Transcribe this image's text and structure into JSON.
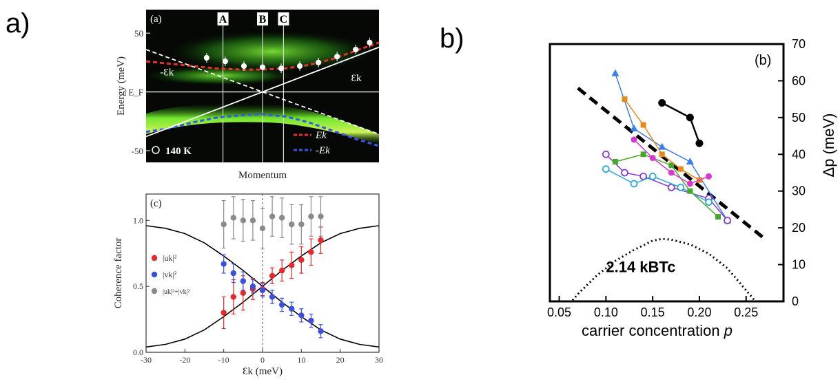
{
  "panel_labels": {
    "a": "a)",
    "b": "b)"
  },
  "chart_data": [
    {
      "type": "heatmap",
      "panel_tag": "(a)",
      "ylabel": "Energy (meV)",
      "xlabel": "Momentum",
      "ylim": [
        -60,
        70
      ],
      "yticks": [
        {
          "v": 50,
          "label": "50"
        },
        {
          "v": 0,
          "label": "E_F"
        },
        {
          "v": -50,
          "label": "-50"
        }
      ],
      "markers": [
        "A",
        "B",
        "C"
      ],
      "curve_labels": [
        "-Ɛk",
        "Ɛk"
      ],
      "legend": [
        {
          "symbol": "open-circle",
          "label": "140 K",
          "color": "#ffffff"
        },
        {
          "symbol": "dashed",
          "label": "Ek",
          "color": "#e8312a"
        },
        {
          "symbol": "dashed",
          "label": "-Ek",
          "color": "#3a56e8"
        }
      ],
      "series": [
        {
          "name": "Ek",
          "x": [
            0.0,
            0.1,
            0.2,
            0.3,
            0.4,
            0.5,
            0.6,
            0.7,
            0.8,
            0.9,
            1.0
          ],
          "y": [
            26,
            24,
            22,
            20,
            19,
            19,
            20,
            23,
            28,
            35,
            42
          ],
          "color": "#e8312a"
        },
        {
          "name": "-Ek",
          "x": [
            0.0,
            0.1,
            0.2,
            0.3,
            0.4,
            0.5,
            0.6,
            0.7,
            0.8,
            0.9,
            1.0
          ],
          "y": [
            -34,
            -31,
            -26,
            -22,
            -20,
            -19,
            -21,
            -26,
            -33,
            -40,
            -46
          ],
          "color": "#3a56e8"
        },
        {
          "name": "Ɛk",
          "x": [
            0.0,
            1.0
          ],
          "y": [
            -38,
            38
          ],
          "color": "#ffffff"
        },
        {
          "name": "-Ɛk",
          "x": [
            0.0,
            1.0
          ],
          "y": [
            36,
            -36
          ],
          "color": "#ffffff"
        }
      ],
      "data_points": {
        "x": [
          0.26,
          0.34,
          0.42,
          0.5,
          0.58,
          0.66,
          0.74,
          0.82,
          0.9,
          0.96
        ],
        "y": [
          29,
          26,
          22,
          21,
          20,
          22,
          25,
          30,
          36,
          42
        ]
      }
    },
    {
      "type": "scatter",
      "panel_tag": "(c)",
      "xlabel": "Ɛk (meV)",
      "ylabel": "Coherence factor",
      "xlim": [
        -30,
        30
      ],
      "ylim": [
        0,
        1.2
      ],
      "xticks": [
        -30,
        -20,
        -10,
        0,
        10,
        20,
        30
      ],
      "yticks": [
        {
          "v": 0,
          "label": "0.0"
        },
        {
          "v": 0.5,
          "label": "0.5"
        },
        {
          "v": 1,
          "label": "1.0"
        }
      ],
      "legend": [
        {
          "label": "|uk|²",
          "color": "#e8282a"
        },
        {
          "label": "|vk|²",
          "color": "#3c50e0"
        },
        {
          "label": "|uk|²+|vk|²",
          "color": "#8a8a8a"
        }
      ],
      "series": [
        {
          "name": "|uk|²",
          "color": "#e8282a",
          "x": [
            -10,
            -7.5,
            -5,
            -2.5,
            0,
            2.5,
            5,
            7.5,
            10,
            12.5,
            15
          ],
          "y": [
            0.3,
            0.42,
            0.45,
            0.48,
            0.48,
            0.58,
            0.62,
            0.66,
            0.7,
            0.76,
            0.85
          ],
          "err": [
            0.12,
            0.13,
            0.13,
            0.08,
            0.05,
            0.06,
            0.08,
            0.1,
            0.1,
            0.1,
            0.1
          ]
        },
        {
          "name": "|vk|²",
          "color": "#3c50e0",
          "x": [
            -10,
            -7.5,
            -5,
            -2.5,
            0,
            2.5,
            5,
            7.5,
            10,
            12.5,
            15
          ],
          "y": [
            0.67,
            0.6,
            0.54,
            0.5,
            0.47,
            0.42,
            0.36,
            0.33,
            0.28,
            0.24,
            0.16
          ],
          "err": [
            0.07,
            0.07,
            0.07,
            0.05,
            0.05,
            0.05,
            0.05,
            0.05,
            0.05,
            0.05,
            0.05
          ]
        },
        {
          "name": "|uk|²+|vk|²",
          "color": "#8a8a8a",
          "x": [
            -10,
            -7.5,
            -5,
            -2.5,
            0,
            2.5,
            5,
            7.5,
            10,
            12.5,
            15
          ],
          "y": [
            0.97,
            1.02,
            1.0,
            1.0,
            0.94,
            1.03,
            1.02,
            0.97,
            0.97,
            1.03,
            1.03
          ],
          "err": [
            0.18,
            0.16,
            0.16,
            0.15,
            0.15,
            0.15,
            0.15,
            0.15,
            0.15,
            0.15,
            0.15
          ]
        }
      ],
      "theory_curves": [
        {
          "name": "u",
          "x": [
            -30,
            -25,
            -20,
            -15,
            -10,
            -5,
            0,
            5,
            10,
            15,
            20,
            25,
            30
          ],
          "y": [
            0.04,
            0.06,
            0.1,
            0.17,
            0.27,
            0.38,
            0.5,
            0.62,
            0.73,
            0.83,
            0.9,
            0.94,
            0.96
          ]
        },
        {
          "name": "v",
          "x": [
            -30,
            -25,
            -20,
            -15,
            -10,
            -5,
            0,
            5,
            10,
            15,
            20,
            25,
            30
          ],
          "y": [
            0.96,
            0.94,
            0.9,
            0.83,
            0.73,
            0.62,
            0.5,
            0.38,
            0.27,
            0.17,
            0.1,
            0.06,
            0.04
          ]
        }
      ]
    },
    {
      "type": "line",
      "panel_tag": "(b)",
      "xlabel_text": "carrier concentration ",
      "xlabel_var": "p",
      "ylabel": "Δp (meV)",
      "xlim": [
        0.04,
        0.29
      ],
      "ylim": [
        0,
        70
      ],
      "xticks": [
        0.05,
        0.1,
        0.15,
        0.2,
        0.25
      ],
      "xtick_labels": [
        "0.05",
        "0.10",
        "0.15",
        "0.20",
        "0.25"
      ],
      "yticks": [
        0,
        10,
        20,
        30,
        40,
        50,
        60,
        70
      ],
      "annotation": "2.14 kBTc",
      "series": [
        {
          "name": "black",
          "color": "#000000",
          "marker": "filled-circle",
          "x": [
            0.16,
            0.19,
            0.2
          ],
          "y": [
            54,
            50,
            43
          ]
        },
        {
          "name": "blue-tri",
          "color": "#3a7ff0",
          "marker": "filled-triangle",
          "x": [
            0.11,
            0.13,
            0.16,
            0.19,
            0.23
          ],
          "y": [
            62,
            47,
            42,
            38,
            22
          ]
        },
        {
          "name": "purple-open",
          "color": "#8a3ad8",
          "marker": "open-circle",
          "x": [
            0.1,
            0.12,
            0.14,
            0.17,
            0.21,
            0.23
          ],
          "y": [
            40,
            35,
            34,
            31,
            28,
            22
          ]
        },
        {
          "name": "cyan-open",
          "color": "#2aa7d8",
          "marker": "open-circle",
          "x": [
            0.1,
            0.13,
            0.15,
            0.18,
            0.21
          ],
          "y": [
            36,
            32,
            34,
            31,
            27
          ]
        },
        {
          "name": "green-sq",
          "color": "#46a82a",
          "marker": "filled-square",
          "x": [
            0.11,
            0.14,
            0.17,
            0.19,
            0.22
          ],
          "y": [
            38,
            40,
            37,
            30,
            23
          ]
        },
        {
          "name": "orange-sq",
          "color": "#e88a1a",
          "marker": "filled-square",
          "x": [
            0.12,
            0.14,
            0.16,
            0.18,
            0.2
          ],
          "y": [
            55,
            48,
            40,
            36,
            33
          ]
        },
        {
          "name": "magenta-circ",
          "color": "#d83ad0",
          "marker": "filled-circle",
          "x": [
            0.13,
            0.15,
            0.17,
            0.19,
            0.21
          ],
          "y": [
            44,
            39,
            35,
            32,
            34
          ]
        }
      ],
      "trend_line": {
        "x": [
          0.07,
          0.27
        ],
        "y": [
          58,
          17
        ]
      },
      "dome": {
        "x": [
          0.05,
          0.07,
          0.09,
          0.11,
          0.13,
          0.15,
          0.16,
          0.17,
          0.19,
          0.21,
          0.23,
          0.25,
          0.27
        ],
        "y": [
          -4,
          2,
          7,
          11,
          14,
          16.5,
          17,
          16.8,
          15.5,
          13,
          9,
          3,
          -3
        ]
      }
    }
  ]
}
